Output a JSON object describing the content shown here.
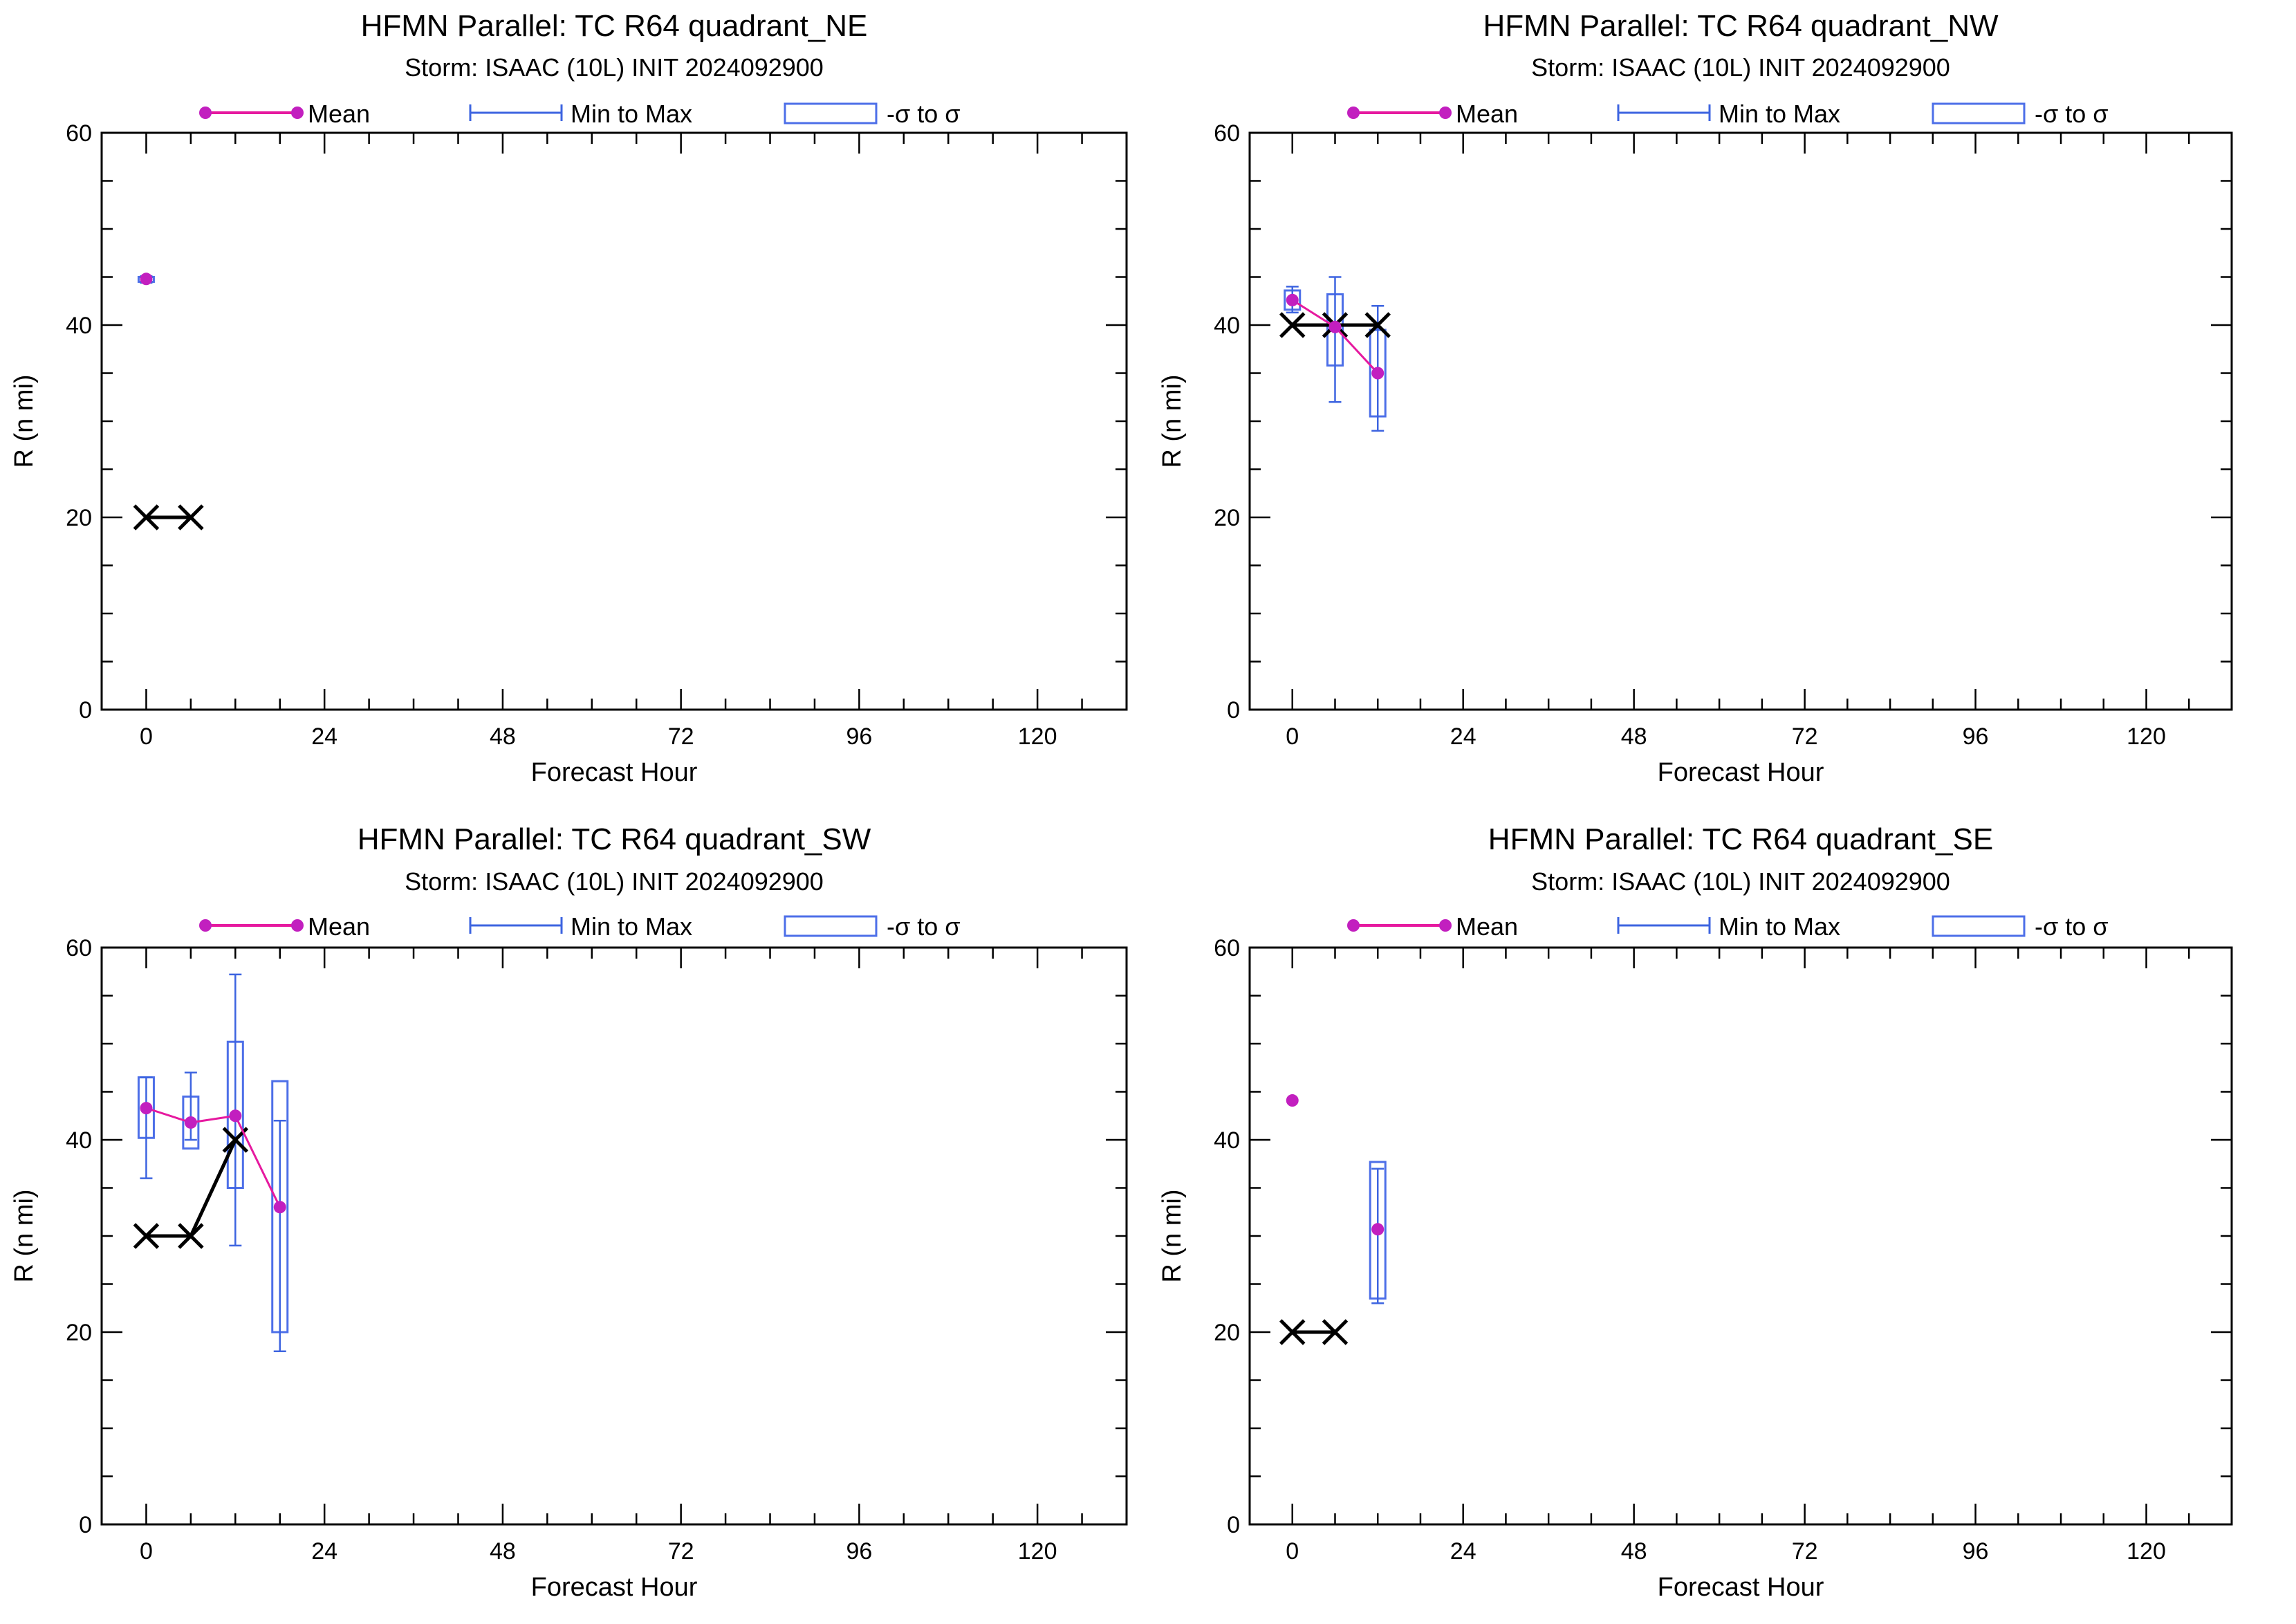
{
  "colors": {
    "mean": "#e6199f",
    "mean_marker": "#c21fbf",
    "whisker": "#3d64e0",
    "box": "#4d6fe8",
    "observed": "#000000"
  },
  "legend": {
    "mean_label": "Mean",
    "minmax_label": "Min to Max",
    "sigma_label": "-σ to σ"
  },
  "chart_data": [
    {
      "type": "box",
      "title": "HFMN Parallel: TC  R64 quadrant_NE",
      "subtitle": "Storm: ISAAC (10L) INIT 2024092900",
      "xlabel": "Forecast Hour",
      "ylabel": "R (n mi)",
      "xlim": [
        -6,
        132
      ],
      "ylim": [
        0,
        60
      ],
      "x_ticks": [
        0,
        24,
        48,
        72,
        96,
        120
      ],
      "y_ticks": [
        0,
        20,
        40,
        60
      ],
      "grid": false,
      "legend_position": "top",
      "stats": [
        {
          "x": 0,
          "mean": 44.8,
          "min": 44.4,
          "max": 45.1,
          "sig_lo": 44.5,
          "sig_hi": 45.0
        }
      ],
      "observed": [
        {
          "x": 0,
          "y": 20
        },
        {
          "x": 6,
          "y": 20
        }
      ]
    },
    {
      "type": "box",
      "title": "HFMN Parallel: TC  R64 quadrant_NW",
      "subtitle": "Storm: ISAAC (10L) INIT 2024092900",
      "xlabel": "Forecast Hour",
      "ylabel": "R (n mi)",
      "xlim": [
        -6,
        132
      ],
      "ylim": [
        0,
        60
      ],
      "x_ticks": [
        0,
        24,
        48,
        72,
        96,
        120
      ],
      "y_ticks": [
        0,
        20,
        40,
        60
      ],
      "grid": false,
      "legend_position": "top",
      "stats": [
        {
          "x": 0,
          "mean": 42.6,
          "min": 41.3,
          "max": 44.0,
          "sig_lo": 41.6,
          "sig_hi": 43.6
        },
        {
          "x": 6,
          "mean": 39.8,
          "min": 32.0,
          "max": 45.0,
          "sig_lo": 35.8,
          "sig_hi": 43.2
        },
        {
          "x": 12,
          "mean": 35.0,
          "min": 29.0,
          "max": 42.0,
          "sig_lo": 30.5,
          "sig_hi": 39.5
        }
      ],
      "observed": [
        {
          "x": 0,
          "y": 40
        },
        {
          "x": 6,
          "y": 40
        },
        {
          "x": 12,
          "y": 40
        }
      ]
    },
    {
      "type": "box",
      "title": "HFMN Parallel: TC  R64 quadrant_SW",
      "subtitle": "Storm: ISAAC (10L) INIT 2024092900",
      "xlabel": "Forecast Hour",
      "ylabel": "R (n mi)",
      "xlim": [
        -6,
        132
      ],
      "ylim": [
        0,
        60
      ],
      "x_ticks": [
        0,
        24,
        48,
        72,
        96,
        120
      ],
      "y_ticks": [
        0,
        20,
        40,
        60
      ],
      "grid": false,
      "legend_position": "top",
      "stats": [
        {
          "x": 0,
          "mean": 43.3,
          "min": 36.0,
          "max": 46.5,
          "sig_lo": 40.2,
          "sig_hi": 46.5
        },
        {
          "x": 6,
          "mean": 41.8,
          "min": 40.0,
          "max": 47.0,
          "sig_lo": 39.1,
          "sig_hi": 44.5
        },
        {
          "x": 12,
          "mean": 42.5,
          "min": 29.0,
          "max": 57.2,
          "sig_lo": 35.0,
          "sig_hi": 50.2
        },
        {
          "x": 18,
          "mean": 33.0,
          "min": 18.0,
          "max": 42.0,
          "sig_lo": 20.0,
          "sig_hi": 46.1
        }
      ],
      "observed": [
        {
          "x": 0,
          "y": 30
        },
        {
          "x": 6,
          "y": 30
        },
        {
          "x": 12,
          "y": 40
        }
      ]
    },
    {
      "type": "box",
      "title": "HFMN Parallel: TC  R64 quadrant_SE",
      "subtitle": "Storm: ISAAC (10L) INIT 2024092900",
      "xlabel": "Forecast Hour",
      "ylabel": "R (n mi)",
      "xlim": [
        -6,
        132
      ],
      "ylim": [
        0,
        60
      ],
      "x_ticks": [
        0,
        24,
        48,
        72,
        96,
        120
      ],
      "y_ticks": [
        0,
        20,
        40,
        60
      ],
      "grid": false,
      "legend_position": "top",
      "stats": [
        {
          "x": 0,
          "mean": 44.1,
          "min": 44.1,
          "max": 44.1,
          "sig_lo": 44.1,
          "sig_hi": 44.1
        },
        {
          "x": 12,
          "mean": 30.7,
          "min": 23.0,
          "max": 37.0,
          "sig_lo": 23.5,
          "sig_hi": 37.7
        }
      ],
      "observed": [
        {
          "x": 0,
          "y": 20
        },
        {
          "x": 6,
          "y": 20
        }
      ]
    }
  ]
}
